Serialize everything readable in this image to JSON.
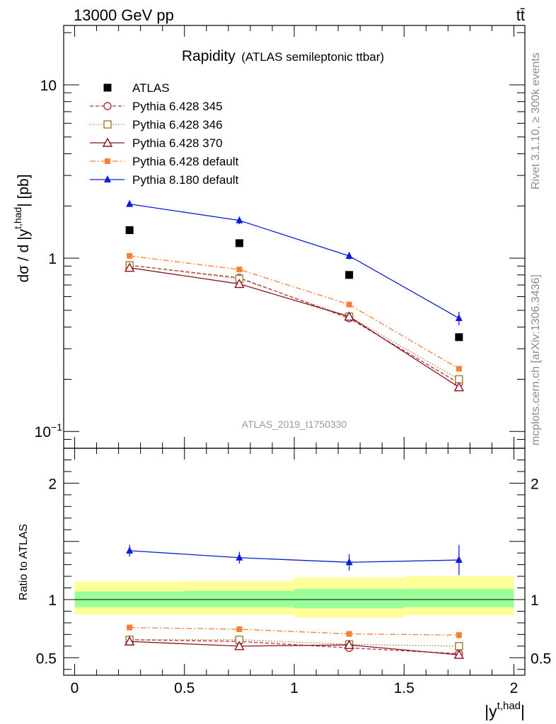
{
  "header": {
    "energy_label": "13000 GeV pp",
    "process_label": "tt̄"
  },
  "side_labels": {
    "rivet": "Rivet 3.1.10, ≥ 300k events",
    "mcplots": "mcplots.cern.ch [arXiv:1306.3436]"
  },
  "chart_data": [
    {
      "type": "line",
      "panel": "main",
      "title": "Rapidity",
      "subtitle": "(ATLAS semileptonic ttbar)",
      "ylabel": "dσ / d |y^{t,had}| [pb]",
      "yscale": "log",
      "ylim": [
        0.08,
        22
      ],
      "xlim": [
        -0.05,
        2.05
      ],
      "y_tick_labels": [
        {
          "value": 0.1,
          "base": "10",
          "exp": "−1"
        },
        {
          "value": 1,
          "base": "1",
          "exp": ""
        },
        {
          "value": 10,
          "base": "10",
          "exp": ""
        }
      ],
      "watermark": "ATLAS_2019_I1750330",
      "legend_position": "top-left",
      "x": [
        0.25,
        0.75,
        1.25,
        1.75
      ],
      "series": [
        {
          "name": "ATLAS",
          "color": "#000000",
          "style": "data",
          "values": [
            1.45,
            1.22,
            0.8,
            0.35
          ]
        },
        {
          "name": "Pythia 6.428 345",
          "color": "#b22d3c",
          "style": "dashed",
          "marker": "open-circle",
          "values": [
            0.91,
            0.77,
            0.45,
            0.19
          ]
        },
        {
          "name": "Pythia 6.428 346",
          "color": "#9e7a2e",
          "style": "dotted",
          "marker": "open-square",
          "values": [
            0.91,
            0.76,
            0.46,
            0.2
          ]
        },
        {
          "name": "Pythia 6.428 370",
          "color": "#8b0f23",
          "style": "solid",
          "marker": "open-triangle",
          "values": [
            0.88,
            0.71,
            0.46,
            0.18
          ]
        },
        {
          "name": "Pythia 6.428 default",
          "color": "#f57f34",
          "style": "dashdot",
          "marker": "filled-square",
          "values": [
            1.03,
            0.86,
            0.54,
            0.23
          ]
        },
        {
          "name": "Pythia 8.180 default",
          "color": "#0b1ed6",
          "style": "solid",
          "marker": "filled-triangle",
          "values": [
            2.05,
            1.65,
            1.03,
            0.45
          ],
          "errors": [
            0.07,
            0.08,
            0.05,
            0.04
          ]
        }
      ]
    },
    {
      "type": "line",
      "panel": "ratio",
      "ylabel": "Ratio to ATLAS",
      "xlabel": "|y^{t,had}|",
      "ylim": [
        0.35,
        2.3
      ],
      "xlim": [
        -0.05,
        2.05
      ],
      "x_tick_labels": [
        "0",
        "0.5",
        "1",
        "1.5",
        "2"
      ],
      "y_tick_labels": [
        "0.5",
        "1",
        "2"
      ],
      "bands": {
        "bins": [
          [
            0,
            0.5
          ],
          [
            0.5,
            1
          ],
          [
            1,
            1.5
          ],
          [
            1.5,
            2
          ]
        ],
        "stat": [
          [
            0.935,
            1.07
          ],
          [
            0.935,
            1.075
          ],
          [
            0.925,
            1.09
          ],
          [
            0.935,
            1.09
          ]
        ],
        "total": [
          [
            0.87,
            1.155
          ],
          [
            0.87,
            1.16
          ],
          [
            0.845,
            1.19
          ],
          [
            0.865,
            1.2
          ]
        ]
      },
      "x": [
        0.25,
        0.75,
        1.25,
        1.75
      ],
      "series": [
        {
          "name": "Pythia 6.428 345",
          "color": "#b22d3c",
          "style": "dashed",
          "marker": "open-circle",
          "values": [
            0.655,
            0.64,
            0.585,
            0.535
          ]
        },
        {
          "name": "Pythia 6.428 346",
          "color": "#9e7a2e",
          "style": "dotted",
          "marker": "open-square",
          "values": [
            0.655,
            0.655,
            0.615,
            0.6
          ]
        },
        {
          "name": "Pythia 6.428 370",
          "color": "#8b0f23",
          "style": "solid",
          "marker": "open-triangle",
          "values": [
            0.64,
            0.6,
            0.61,
            0.525
          ]
        },
        {
          "name": "Pythia 6.428 default",
          "color": "#f57f34",
          "style": "dashdot",
          "marker": "filled-square",
          "values": [
            0.76,
            0.745,
            0.705,
            0.695
          ],
          "errors": [
            0.015,
            0.015,
            0.015,
            0.03
          ]
        },
        {
          "name": "Pythia 8.180 default",
          "color": "#0b1ed6",
          "style": "solid",
          "marker": "filled-triangle",
          "values": [
            1.42,
            1.36,
            1.32,
            1.34
          ],
          "errors": [
            0.05,
            0.05,
            0.07,
            0.13
          ]
        }
      ]
    }
  ]
}
